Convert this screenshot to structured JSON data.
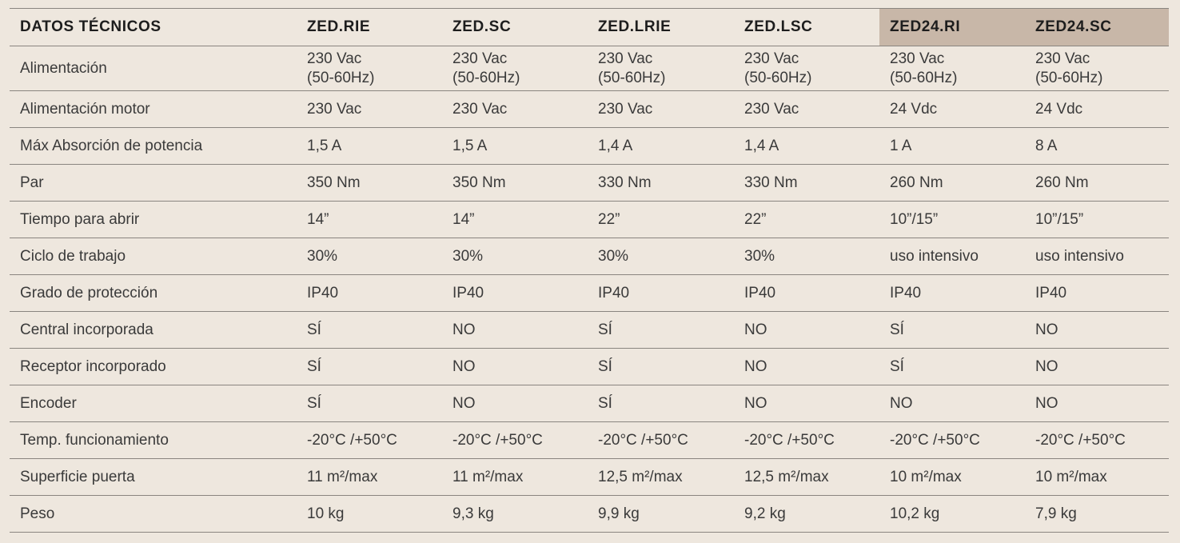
{
  "table": {
    "headers": [
      "DATOS TÉCNICOS",
      "ZED.RIE",
      "ZED.SC",
      "ZED.LRIE",
      "ZED.LSC",
      "ZED24.RI",
      "ZED24.SC"
    ],
    "rows": [
      {
        "label": "Alimentación",
        "cells": [
          {
            "l1": "230 Vac",
            "l2": "(50-60Hz)"
          },
          {
            "l1": "230 Vac",
            "l2": "(50-60Hz)"
          },
          {
            "l1": "230 Vac",
            "l2": "(50-60Hz)"
          },
          {
            "l1": "230 Vac",
            "l2": "(50-60Hz)"
          },
          {
            "l1": "230 Vac",
            "l2": "(50-60Hz)"
          },
          {
            "l1": "230 Vac",
            "l2": "(50-60Hz)"
          }
        ]
      },
      {
        "label": "Alimentación motor",
        "cells": [
          "230 Vac",
          "230 Vac",
          "230 Vac",
          "230 Vac",
          "24 Vdc",
          "24 Vdc"
        ]
      },
      {
        "label": "Máx Absorción de potencia",
        "cells": [
          "1,5 A",
          "1,5 A",
          "1,4 A",
          "1,4 A",
          "1 A",
          "8 A"
        ]
      },
      {
        "label": "Par",
        "cells": [
          "350 Nm",
          "350 Nm",
          "330 Nm",
          "330 Nm",
          "260 Nm",
          "260 Nm"
        ]
      },
      {
        "label": "Tiempo para abrir",
        "cells": [
          "14”",
          "14”",
          "22”",
          "22”",
          "10”/15”",
          "10”/15”"
        ]
      },
      {
        "label": "Ciclo de trabajo",
        "cells": [
          "30%",
          "30%",
          "30%",
          "30%",
          "uso intensivo",
          "uso intensivo"
        ]
      },
      {
        "label": "Grado de protección",
        "cells": [
          "IP40",
          "IP40",
          "IP40",
          "IP40",
          "IP40",
          "IP40"
        ]
      },
      {
        "label": "Central incorporada",
        "cells": [
          "SÍ",
          "NO",
          "SÍ",
          "NO",
          "SÍ",
          "NO"
        ]
      },
      {
        "label": "Receptor incorporado",
        "cells": [
          "SÍ",
          "NO",
          "SÍ",
          "NO",
          "SÍ",
          "NO"
        ]
      },
      {
        "label": "Encoder",
        "cells": [
          "SÍ",
          "NO",
          "SÍ",
          "NO",
          "NO",
          "NO"
        ]
      },
      {
        "label": "Temp. funcionamiento",
        "cells": [
          "-20°C /+50°C",
          "-20°C /+50°C",
          "-20°C /+50°C",
          "-20°C /+50°C",
          "-20°C /+50°C",
          "-20°C /+50°C"
        ]
      },
      {
        "label": "Superficie puerta",
        "cells": [
          "11 m²/max",
          "11 m²/max",
          "12,5 m²/max",
          "12,5 m²/max",
          "10 m²/max",
          "10 m²/max"
        ]
      },
      {
        "label": "Peso",
        "cells": [
          "10 kg",
          "9,3 kg",
          "9,9 kg",
          "9,2 kg",
          "10,2 kg",
          "7,9 kg"
        ]
      }
    ]
  },
  "colors": {
    "background": "#eee7de",
    "highlight_header": "#c8b7a8",
    "rule": "#8a8580"
  }
}
